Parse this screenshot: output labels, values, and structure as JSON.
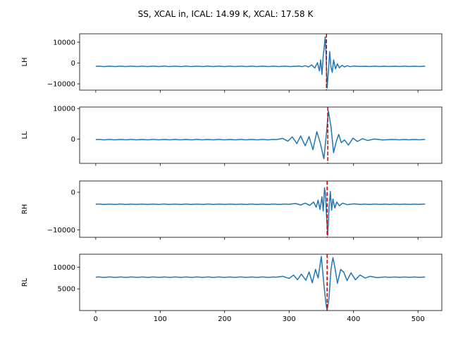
{
  "figure": {
    "title": "SS, XCAL in, ICAL: 14.99 K, XCAL: 17.58 K"
  },
  "colors": {
    "series": "#1f77b4",
    "marker": "#cc0000"
  },
  "chart_data": [
    {
      "type": "line",
      "ylabel": "LH",
      "xlim": [
        -25,
        537
      ],
      "ylim": [
        -13000,
        14000
      ],
      "yticks": [
        10000,
        0,
        -10000
      ],
      "yticklabels": [
        "10000",
        "0",
        "−10000"
      ],
      "show_xticklabels": false,
      "marker_x": 358,
      "baseline": -1600,
      "packet": [
        {
          "x": 310,
          "y": -1600
        },
        {
          "x": 315,
          "y": -1450
        },
        {
          "x": 320,
          "y": -1750
        },
        {
          "x": 325,
          "y": -1300
        },
        {
          "x": 330,
          "y": -1900
        },
        {
          "x": 335,
          "y": -900
        },
        {
          "x": 340,
          "y": -2400
        },
        {
          "x": 344,
          "y": 200
        },
        {
          "x": 347,
          "y": -3800
        },
        {
          "x": 349,
          "y": 1500
        },
        {
          "x": 351,
          "y": -5500
        },
        {
          "x": 353,
          "y": 3500
        },
        {
          "x": 354.5,
          "y": 7500
        },
        {
          "x": 356,
          "y": 12500
        },
        {
          "x": 357.5,
          "y": 3000
        },
        {
          "x": 359,
          "y": -12000
        },
        {
          "x": 361,
          "y": -4000
        },
        {
          "x": 363,
          "y": 5500
        },
        {
          "x": 365,
          "y": -2000
        },
        {
          "x": 367,
          "y": -4500
        },
        {
          "x": 369,
          "y": 1500
        },
        {
          "x": 372,
          "y": -2800
        },
        {
          "x": 375,
          "y": -400
        },
        {
          "x": 378,
          "y": -2300
        },
        {
          "x": 382,
          "y": -1100
        },
        {
          "x": 386,
          "y": -1900
        },
        {
          "x": 390,
          "y": -1300
        },
        {
          "x": 395,
          "y": -1750
        },
        {
          "x": 400,
          "y": -1500
        },
        {
          "x": 410,
          "y": -1650
        },
        {
          "x": 420,
          "y": -1550
        }
      ]
    },
    {
      "type": "line",
      "ylabel": "LL",
      "xlim": [
        -25,
        537
      ],
      "ylim": [
        -8000,
        10500
      ],
      "yticks": [
        10000,
        0
      ],
      "yticklabels": [
        "10000",
        "0"
      ],
      "show_xticklabels": false,
      "marker_x": 360,
      "baseline": -200,
      "packet": [
        {
          "x": 280,
          "y": -200
        },
        {
          "x": 290,
          "y": 200
        },
        {
          "x": 298,
          "y": -700
        },
        {
          "x": 305,
          "y": 700
        },
        {
          "x": 312,
          "y": -1500
        },
        {
          "x": 318,
          "y": 1000
        },
        {
          "x": 325,
          "y": -2200
        },
        {
          "x": 331,
          "y": 800
        },
        {
          "x": 337,
          "y": -3500
        },
        {
          "x": 343,
          "y": 2400
        },
        {
          "x": 348,
          "y": -1000
        },
        {
          "x": 354,
          "y": -6500
        },
        {
          "x": 358,
          "y": 2000
        },
        {
          "x": 361,
          "y": 9200
        },
        {
          "x": 365,
          "y": 4000
        },
        {
          "x": 369,
          "y": -4500
        },
        {
          "x": 373,
          "y": -1000
        },
        {
          "x": 377,
          "y": 1500
        },
        {
          "x": 381,
          "y": -1200
        },
        {
          "x": 386,
          "y": -300
        },
        {
          "x": 392,
          "y": -2000
        },
        {
          "x": 399,
          "y": 300
        },
        {
          "x": 406,
          "y": -800
        },
        {
          "x": 414,
          "y": 100
        },
        {
          "x": 422,
          "y": -500
        },
        {
          "x": 432,
          "y": 0
        },
        {
          "x": 445,
          "y": -300
        },
        {
          "x": 460,
          "y": -150
        }
      ]
    },
    {
      "type": "line",
      "ylabel": "RH",
      "xlim": [
        -25,
        537
      ],
      "ylim": [
        -12000,
        3000
      ],
      "yticks": [
        0,
        -10000
      ],
      "yticklabels": [
        "0",
        "−10000"
      ],
      "show_xticklabels": false,
      "marker_x": 359,
      "baseline": -3200,
      "packet": [
        {
          "x": 300,
          "y": -3200
        },
        {
          "x": 310,
          "y": -3000
        },
        {
          "x": 318,
          "y": -3400
        },
        {
          "x": 325,
          "y": -2900
        },
        {
          "x": 332,
          "y": -3500
        },
        {
          "x": 338,
          "y": -2600
        },
        {
          "x": 342,
          "y": -4000
        },
        {
          "x": 345,
          "y": -2100
        },
        {
          "x": 348,
          "y": -4600
        },
        {
          "x": 351,
          "y": -1200
        },
        {
          "x": 353,
          "y": -5000
        },
        {
          "x": 355,
          "y": 1200
        },
        {
          "x": 356.5,
          "y": -700
        },
        {
          "x": 358,
          "y": -6000
        },
        {
          "x": 360,
          "y": -11500
        },
        {
          "x": 362,
          "y": -4000
        },
        {
          "x": 364,
          "y": 200
        },
        {
          "x": 366,
          "y": -4800
        },
        {
          "x": 368,
          "y": -1800
        },
        {
          "x": 371,
          "y": -4200
        },
        {
          "x": 374,
          "y": -2600
        },
        {
          "x": 378,
          "y": -3600
        },
        {
          "x": 383,
          "y": -2900
        },
        {
          "x": 390,
          "y": -3300
        },
        {
          "x": 400,
          "y": -3100
        },
        {
          "x": 412,
          "y": -3250
        }
      ]
    },
    {
      "type": "line",
      "ylabel": "RL",
      "xlim": [
        -25,
        537
      ],
      "ylim": [
        0,
        13000
      ],
      "yticks": [
        10000,
        5000
      ],
      "yticklabels": [
        "10000",
        "5000"
      ],
      "show_xticklabels": true,
      "xticks": [
        0,
        100,
        200,
        300,
        400,
        500
      ],
      "xticklabels": [
        "0",
        "100",
        "200",
        "300",
        "400",
        "500"
      ],
      "marker_x": 359,
      "baseline": 7700,
      "packet": [
        {
          "x": 280,
          "y": 7700
        },
        {
          "x": 290,
          "y": 7900
        },
        {
          "x": 300,
          "y": 7400
        },
        {
          "x": 307,
          "y": 8200
        },
        {
          "x": 313,
          "y": 7100
        },
        {
          "x": 319,
          "y": 8400
        },
        {
          "x": 326,
          "y": 7000
        },
        {
          "x": 331,
          "y": 8900
        },
        {
          "x": 336,
          "y": 6400
        },
        {
          "x": 341,
          "y": 9500
        },
        {
          "x": 345,
          "y": 7500
        },
        {
          "x": 350,
          "y": 12500
        },
        {
          "x": 354,
          "y": 6000
        },
        {
          "x": 357,
          "y": 1800
        },
        {
          "x": 359,
          "y": 0
        },
        {
          "x": 362,
          "y": 3000
        },
        {
          "x": 365,
          "y": 9500
        },
        {
          "x": 368,
          "y": 12200
        },
        {
          "x": 371,
          "y": 10000
        },
        {
          "x": 375,
          "y": 6300
        },
        {
          "x": 380,
          "y": 9500
        },
        {
          "x": 385,
          "y": 8800
        },
        {
          "x": 390,
          "y": 6900
        },
        {
          "x": 396,
          "y": 8700
        },
        {
          "x": 403,
          "y": 7100
        },
        {
          "x": 410,
          "y": 8200
        },
        {
          "x": 418,
          "y": 7500
        },
        {
          "x": 426,
          "y": 7900
        },
        {
          "x": 436,
          "y": 7600
        },
        {
          "x": 450,
          "y": 7750
        }
      ]
    }
  ]
}
